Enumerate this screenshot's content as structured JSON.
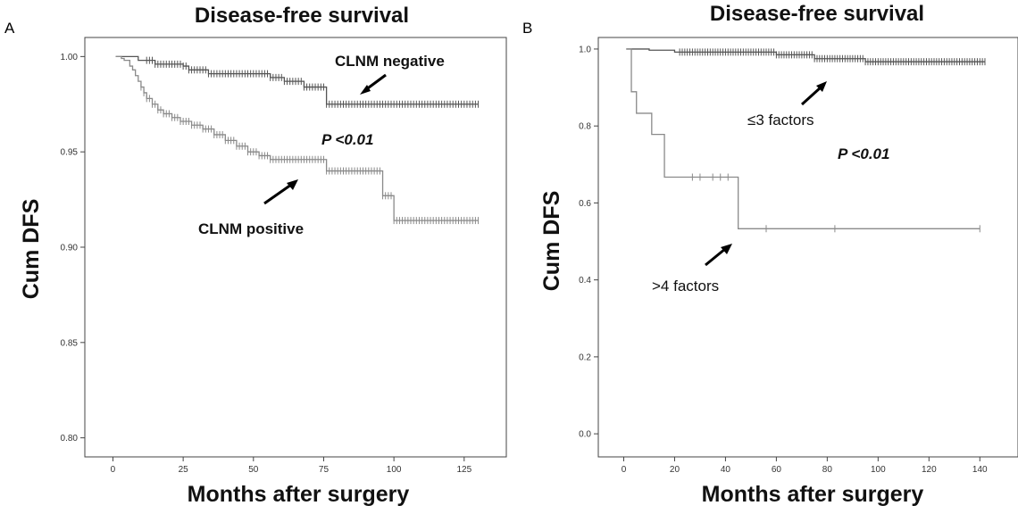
{
  "chart_data": [
    {
      "type": "line",
      "panel_label": "A",
      "title": "Disease-free survival",
      "xlabel": "Months after surgery",
      "ylabel": "Cum DFS",
      "xlim": [
        -10,
        140
      ],
      "ylim": [
        0.79,
        1.01
      ],
      "xticks": [
        0,
        25,
        50,
        75,
        100,
        125
      ],
      "yticks": [
        0.8,
        0.85,
        0.9,
        0.95,
        1.0
      ],
      "ytick_labels": [
        "0.80",
        "0.85",
        "0.90",
        "0.95",
        "1.00"
      ],
      "grid": false,
      "legend": "none",
      "series": [
        {
          "name": "CLNM negative",
          "color": "#555555",
          "points": [
            [
              1,
              1.0
            ],
            [
              8,
              1.0
            ],
            [
              9,
              0.998
            ],
            [
              14,
              0.998
            ],
            [
              15,
              0.996
            ],
            [
              25,
              0.995
            ],
            [
              27,
              0.993
            ],
            [
              33,
              0.993
            ],
            [
              34,
              0.991
            ],
            [
              55,
              0.991
            ],
            [
              56,
              0.989
            ],
            [
              60,
              0.989
            ],
            [
              61,
              0.987
            ],
            [
              67,
              0.987
            ],
            [
              68,
              0.984
            ],
            [
              75,
              0.984
            ],
            [
              76,
              0.975
            ],
            [
              130,
              0.975
            ]
          ],
          "censor_ranges": [
            [
              12,
              130
            ]
          ]
        },
        {
          "name": "CLNM positive",
          "color": "#8a8a8a",
          "points": [
            [
              1,
              1.0
            ],
            [
              3,
              0.999
            ],
            [
              4,
              0.998
            ],
            [
              6,
              0.995
            ],
            [
              7,
              0.993
            ],
            [
              8,
              0.99
            ],
            [
              9,
              0.987
            ],
            [
              10,
              0.984
            ],
            [
              11,
              0.981
            ],
            [
              12,
              0.978
            ],
            [
              14,
              0.975
            ],
            [
              16,
              0.972
            ],
            [
              18,
              0.97
            ],
            [
              21,
              0.968
            ],
            [
              24,
              0.966
            ],
            [
              28,
              0.964
            ],
            [
              32,
              0.962
            ],
            [
              36,
              0.959
            ],
            [
              40,
              0.956
            ],
            [
              44,
              0.953
            ],
            [
              48,
              0.95
            ],
            [
              52,
              0.948
            ],
            [
              56,
              0.946
            ],
            [
              75,
              0.946
            ],
            [
              76,
              0.94
            ],
            [
              95,
              0.94
            ],
            [
              96,
              0.927
            ],
            [
              98,
              0.927
            ],
            [
              100,
              0.914
            ],
            [
              130,
              0.914
            ]
          ],
          "censor_ranges": [
            [
              10,
              130
            ]
          ]
        }
      ],
      "annotations": [
        {
          "text": "CLNM negative",
          "bold": true
        },
        {
          "text": "CLNM positive",
          "bold": true
        },
        {
          "text": "P <0.01",
          "bold": true,
          "italic": true
        }
      ]
    },
    {
      "type": "line",
      "panel_label": "B",
      "title": "Disease-free survival",
      "xlabel": "Months after surgery",
      "ylabel": "Cum DFS",
      "xlim": [
        -10,
        155
      ],
      "ylim": [
        -0.06,
        1.03
      ],
      "xticks": [
        0,
        20,
        40,
        60,
        80,
        100,
        120,
        140
      ],
      "yticks": [
        0.0,
        0.2,
        0.4,
        0.6,
        0.8,
        1.0
      ],
      "ytick_labels": [
        "0.0",
        "0.2",
        "0.4",
        "0.6",
        "0.8",
        "1.0"
      ],
      "grid": false,
      "legend": "none",
      "series": [
        {
          "name": "≤3 factors",
          "color": "#555555",
          "points": [
            [
              1,
              1.0
            ],
            [
              10,
              0.997
            ],
            [
              20,
              0.992
            ],
            [
              60,
              0.985
            ],
            [
              75,
              0.975
            ],
            [
              95,
              0.967
            ],
            [
              142,
              0.967
            ]
          ],
          "censor_ranges": [
            [
              22,
              142
            ]
          ]
        },
        {
          "name": ">4 factors",
          "color": "#8a8a8a",
          "points": [
            [
              1,
              1.0
            ],
            [
              3,
              1.0
            ],
            [
              3,
              0.889
            ],
            [
              5,
              0.889
            ],
            [
              5,
              0.833
            ],
            [
              11,
              0.833
            ],
            [
              11,
              0.778
            ],
            [
              16,
              0.778
            ],
            [
              16,
              0.667
            ],
            [
              45,
              0.667
            ],
            [
              45,
              0.533
            ],
            [
              140,
              0.533
            ]
          ],
          "censor_points": [
            [
              27,
              0.667
            ],
            [
              30,
              0.667
            ],
            [
              35,
              0.667
            ],
            [
              38,
              0.667
            ],
            [
              41,
              0.667
            ],
            [
              56,
              0.533
            ],
            [
              83,
              0.533
            ],
            [
              140,
              0.533
            ]
          ]
        }
      ],
      "annotations": [
        {
          "text": "≤3 factors",
          "bold": false
        },
        {
          "text": ">4 factors",
          "bold": false
        },
        {
          "text": "P <0.01",
          "bold": true,
          "italic": true
        }
      ]
    }
  ]
}
